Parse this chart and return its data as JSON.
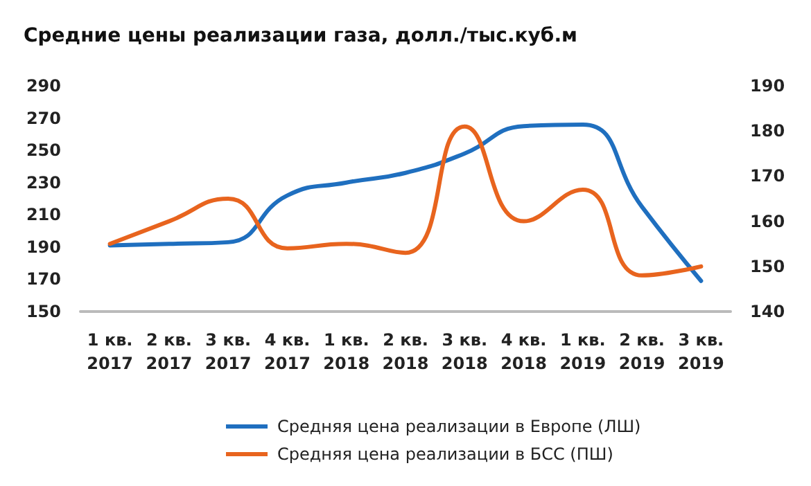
{
  "chart_data": {
    "type": "line",
    "title": "Средние цены реализации газа, долл./тыс.куб.м",
    "categories": [
      "1 кв.\n2017",
      "2 кв.\n2017",
      "3 кв.\n2017",
      "4 кв.\n2017",
      "1 кв.\n2018",
      "2 кв.\n2018",
      "3 кв.\n2018",
      "4 кв.\n2018",
      "1 кв.\n2019",
      "2 кв.\n2019",
      "3 кв.\n2019"
    ],
    "series": [
      {
        "name": "Средняя цена реализации в Европе (ЛШ)",
        "color": "#1f6fbf",
        "values": [
          191,
          192,
          193,
          222,
          230,
          236,
          248,
          265,
          266,
          215,
          169
        ]
      },
      {
        "name": "Средняя цена реализации в БСС (ПШ)",
        "color": "#e8641e",
        "axis": "y2",
        "values": [
          155,
          160,
          165,
          154,
          155,
          153,
          181,
          160,
          167,
          148,
          150
        ]
      }
    ],
    "ylim": [
      150,
      290
    ],
    "yticks": [
      150,
      170,
      190,
      210,
      230,
      250,
      270,
      290
    ],
    "y2lim": [
      140,
      190
    ],
    "y2ticks": [
      140,
      150,
      160,
      170,
      180,
      190
    ],
    "grid": false,
    "legend": "bottom",
    "marker": "none",
    "line_style": "solid"
  }
}
